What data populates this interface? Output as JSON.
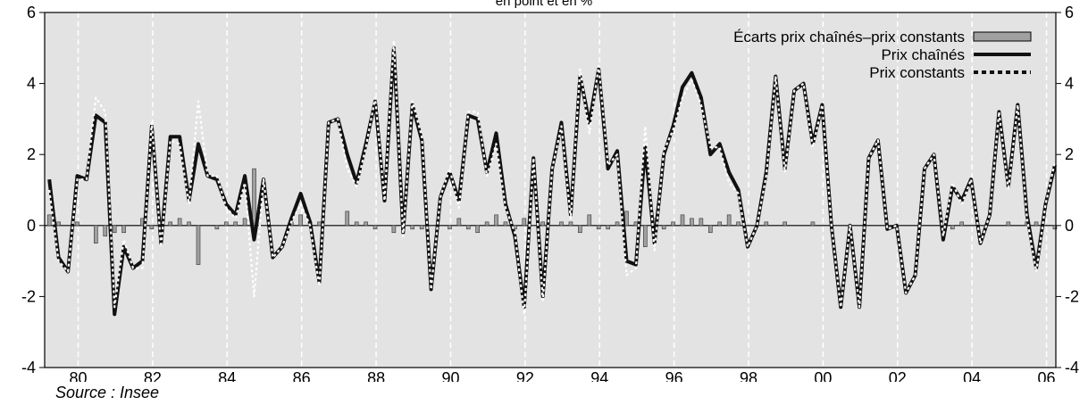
{
  "chart_data": {
    "type": "line",
    "subtitle": "en point et en %",
    "source": "Source : Insee",
    "ylim": [
      -4,
      6
    ],
    "xlim": [
      1979.6,
      2006.75
    ],
    "yticks": [
      -4,
      -2,
      0,
      2,
      4,
      6
    ],
    "xtick_labels": [
      "80",
      "82",
      "84",
      "86",
      "88",
      "90",
      "92",
      "94",
      "96",
      "98",
      "00",
      "02",
      "04",
      "06"
    ],
    "xtick_years": [
      1980,
      1982,
      1984,
      1986,
      1988,
      1990,
      1992,
      1994,
      1996,
      1998,
      2000,
      2002,
      2004,
      2006
    ],
    "grid": true,
    "legend_position": "top-right",
    "series": [
      {
        "name": "Prix chaînés",
        "kind": "line",
        "color": "#111111",
        "values": [
          1.3,
          -0.9,
          -1.3,
          1.4,
          1.3,
          3.1,
          2.9,
          -2.5,
          -0.6,
          -1.2,
          -1.0,
          2.8,
          -0.5,
          2.5,
          2.5,
          0.7,
          2.3,
          1.4,
          1.3,
          0.6,
          0.3,
          1.4,
          -0.4,
          1.3,
          -0.9,
          -0.6,
          0.2,
          0.9,
          0.1,
          -1.6,
          2.9,
          3.0,
          2.0,
          1.2,
          2.3,
          3.5,
          0.7,
          5.0,
          -0.2,
          3.4,
          2.4,
          -1.8,
          0.8,
          1.5,
          0.7,
          3.1,
          3.0,
          1.5,
          2.6,
          0.6,
          -0.3,
          -2.3,
          1.9,
          -2.0,
          1.6,
          2.9,
          0.3,
          4.2,
          2.9,
          4.4,
          1.6,
          2.1,
          -1.0,
          -1.1,
          2.2,
          -0.5,
          2.0,
          2.8,
          3.9,
          4.3,
          3.6,
          2.0,
          2.3,
          1.5,
          1.0,
          -0.6,
          0.0,
          1.5,
          4.2,
          1.6,
          3.8,
          4.0,
          2.3,
          3.4,
          0.0,
          -2.3,
          0.0,
          -2.3,
          1.9,
          2.4,
          -0.1,
          0.0,
          -1.9,
          -1.4,
          1.6,
          2.0,
          -0.4,
          1.1,
          0.7,
          1.3,
          -0.5,
          0.3,
          3.2,
          1.1,
          3.4,
          0.3,
          -1.2,
          0.6,
          1.7
        ]
      },
      {
        "name": "Prix constants",
        "kind": "line",
        "color": "#111111",
        "values": [
          1.0,
          -1.0,
          -1.3,
          1.3,
          1.3,
          3.6,
          3.2,
          -2.3,
          -0.4,
          -1.2,
          -1.2,
          2.9,
          -0.6,
          2.4,
          2.3,
          0.6,
          3.5,
          1.4,
          1.4,
          0.5,
          0.2,
          1.2,
          -2.0,
          1.3,
          -0.9,
          -0.6,
          0.1,
          0.6,
          0.0,
          -1.7,
          2.9,
          3.0,
          1.6,
          1.1,
          2.2,
          3.6,
          0.7,
          5.2,
          -0.3,
          3.5,
          2.5,
          -1.8,
          0.8,
          1.6,
          0.5,
          3.2,
          3.2,
          1.4,
          2.3,
          0.5,
          -0.2,
          -2.5,
          1.9,
          -2.1,
          1.6,
          2.8,
          0.2,
          4.4,
          2.6,
          4.5,
          1.7,
          2.0,
          -1.4,
          -1.2,
          2.8,
          -0.7,
          2.1,
          2.7,
          3.6,
          4.1,
          3.4,
          2.2,
          2.2,
          1.2,
          0.9,
          -0.6,
          0.0,
          1.4,
          4.2,
          1.5,
          3.8,
          4.0,
          2.2,
          3.4,
          0.0,
          -2.3,
          0.0,
          -2.3,
          1.9,
          2.4,
          -0.1,
          0.0,
          -1.9,
          -1.4,
          1.6,
          2.0,
          -0.3,
          1.2,
          0.6,
          1.3,
          -0.5,
          0.3,
          3.2,
          1.0,
          3.4,
          0.2,
          -1.3,
          0.6,
          1.8
        ]
      },
      {
        "name": "Écarts prix chaînés–prix constants",
        "kind": "bar",
        "color": "#a0a0a0",
        "values": [
          0.3,
          0.1,
          0.0,
          0.1,
          0.0,
          -0.5,
          -0.3,
          -0.2,
          -0.2,
          0.0,
          0.2,
          -0.1,
          0.1,
          0.1,
          0.2,
          0.1,
          -1.1,
          0.0,
          -0.1,
          0.1,
          0.1,
          0.2,
          1.6,
          0.0,
          0.0,
          0.0,
          0.1,
          0.3,
          0.1,
          0.1,
          0.0,
          0.0,
          0.4,
          0.1,
          0.1,
          -0.1,
          0.0,
          -0.2,
          0.1,
          -0.1,
          -0.1,
          0.0,
          0.0,
          -0.1,
          0.2,
          -0.1,
          -0.2,
          0.1,
          0.3,
          0.1,
          -0.1,
          0.2,
          0.0,
          0.1,
          0.0,
          0.1,
          0.1,
          -0.2,
          0.3,
          -0.1,
          -0.1,
          0.1,
          0.4,
          0.1,
          -0.6,
          0.2,
          -0.1,
          0.1,
          0.3,
          0.2,
          0.2,
          -0.2,
          0.1,
          0.3,
          0.1,
          0.0,
          0.0,
          0.1,
          0.0,
          0.1,
          0.0,
          0.0,
          0.1,
          0.0,
          0.0,
          0.0,
          0.0,
          0.0,
          0.0,
          0.0,
          0.0,
          0.0,
          0.0,
          0.0,
          0.0,
          0.0,
          -0.1,
          -0.1,
          0.1,
          0.0,
          0.0,
          0.0,
          0.0,
          0.1,
          0.0,
          0.1,
          0.1,
          0.0,
          -0.1
        ]
      }
    ]
  }
}
